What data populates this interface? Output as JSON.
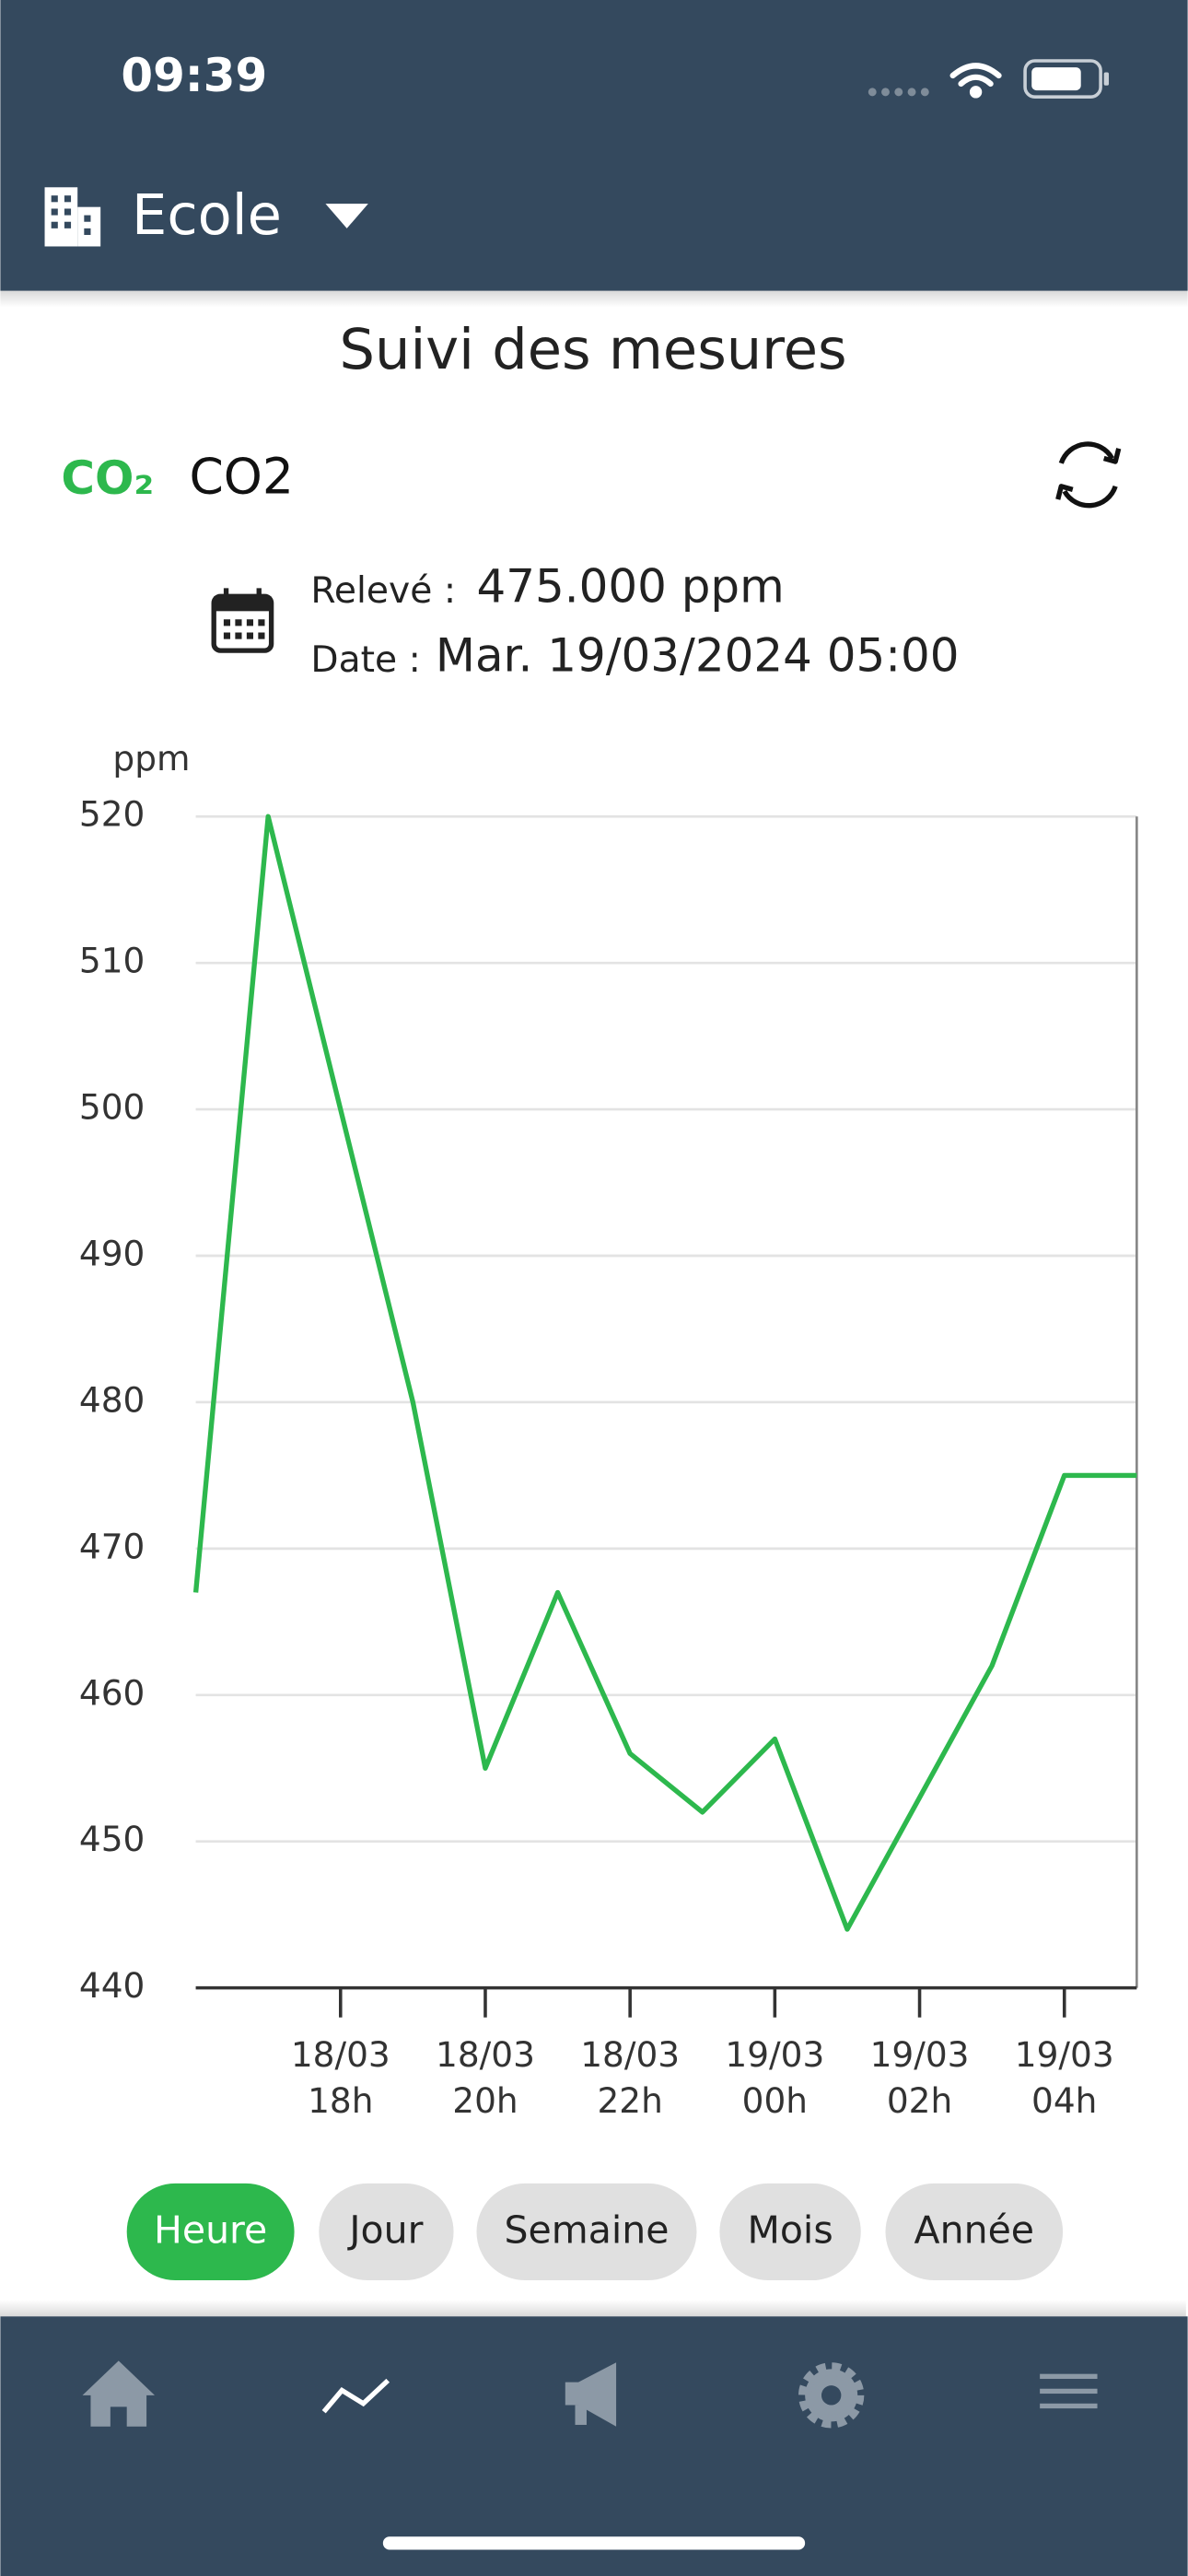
{
  "status_bar": {
    "time": "09:39"
  },
  "header": {
    "site": "Ecole"
  },
  "page": {
    "title": "Suivi des mesures"
  },
  "sensor": {
    "logo": "CO₂",
    "name": "CO2"
  },
  "reading": {
    "label": "Relevé :",
    "value": "475.000 ppm",
    "date_label": "Date :",
    "date": "Mar. 19/03/2024 05:00"
  },
  "chart_data": {
    "type": "line",
    "y_label": "ppm",
    "categories": [
      null,
      null,
      [
        "18/03",
        "18h"
      ],
      null,
      [
        "18/03",
        "20h"
      ],
      null,
      [
        "18/03",
        "22h"
      ],
      null,
      [
        "19/03",
        "00h"
      ],
      null,
      [
        "19/03",
        "02h"
      ],
      null,
      [
        "19/03",
        "04h"
      ],
      null
    ],
    "values": [
      467,
      520,
      500,
      480,
      455,
      467,
      456,
      452,
      457,
      444,
      453,
      462,
      475,
      475
    ],
    "color": "#2db84d",
    "ylim": [
      440,
      520
    ],
    "yticks": [
      440,
      450,
      460,
      470,
      480,
      490,
      500,
      510,
      520
    ],
    "grid": true
  },
  "range_buttons": [
    "Heure",
    "Jour",
    "Semaine",
    "Mois",
    "Année"
  ]
}
